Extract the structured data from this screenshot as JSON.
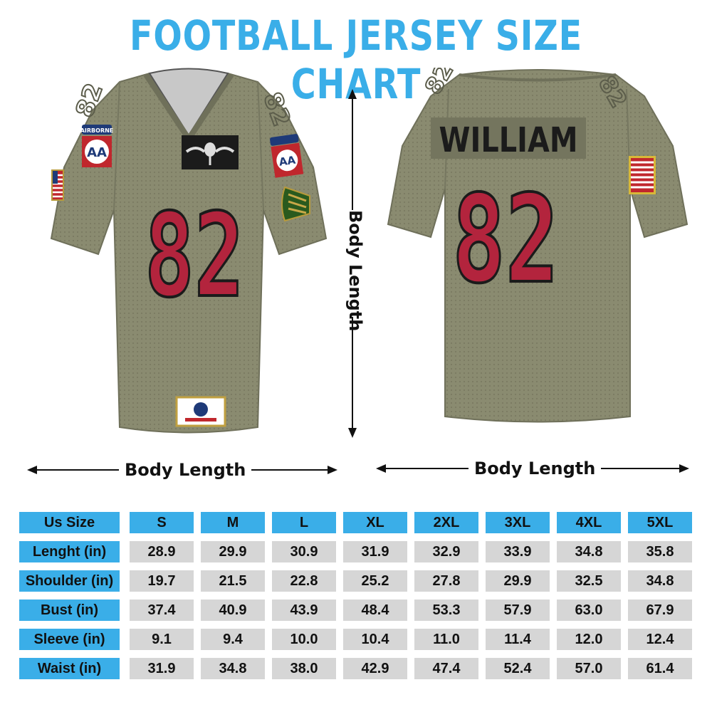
{
  "title": "FOOTBALL JERSEY SIZE CHART",
  "front_jersey": {
    "number": "82",
    "sleeve_number": "82",
    "patch_text": "AIRBORNE",
    "patch_letters": "AA"
  },
  "back_jersey": {
    "name": "WILLIAM",
    "number": "82"
  },
  "labels": {
    "front_width": "Body Length",
    "back_width": "Body Length",
    "vertical_length": "Body Length"
  },
  "colors": {
    "title": "#3aaee8",
    "header_cell": "#3aaee8",
    "value_cell": "#d6d6d6",
    "jersey": "#8a8b70",
    "number_fill": "#b3243d"
  },
  "size_table": {
    "header_label": "Us Size",
    "sizes": [
      "S",
      "M",
      "L",
      "XL",
      "2XL",
      "3XL",
      "4XL",
      "5XL"
    ],
    "rows": [
      {
        "label": "Lenght (in)",
        "values": [
          "28.9",
          "29.9",
          "30.9",
          "31.9",
          "32.9",
          "33.9",
          "34.8",
          "35.8"
        ]
      },
      {
        "label": "Shoulder (in)",
        "values": [
          "19.7",
          "21.5",
          "22.8",
          "25.2",
          "27.8",
          "29.9",
          "32.5",
          "34.8"
        ]
      },
      {
        "label": "Bust (in)",
        "values": [
          "37.4",
          "40.9",
          "43.9",
          "48.4",
          "53.3",
          "57.9",
          "63.0",
          "67.9"
        ]
      },
      {
        "label": "Sleeve (in)",
        "values": [
          "9.1",
          "9.4",
          "10.0",
          "10.4",
          "11.0",
          "11.4",
          "12.0",
          "12.4"
        ]
      },
      {
        "label": "Waist (in)",
        "values": [
          "31.9",
          "34.8",
          "38.0",
          "42.9",
          "47.4",
          "52.4",
          "57.0",
          "61.4"
        ]
      }
    ]
  }
}
